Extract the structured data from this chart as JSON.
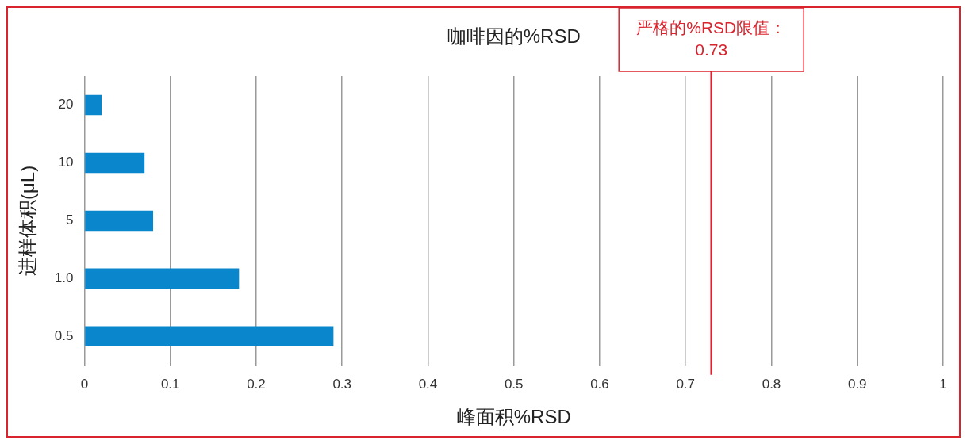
{
  "chart_data": {
    "type": "bar",
    "orientation": "horizontal",
    "title": "咖啡因的%RSD",
    "xlabel": "峰面积%RSD",
    "ylabel": "进样体积(μL)",
    "categories": [
      "20",
      "10",
      "5",
      "1.0",
      "0.5"
    ],
    "values": [
      0.02,
      0.07,
      0.08,
      0.18,
      0.29
    ],
    "color": "#0a87cc",
    "xlim": [
      0,
      1
    ],
    "xticks": [
      0,
      0.1,
      0.2,
      0.3,
      0.4,
      0.5,
      0.6,
      0.7,
      0.8,
      0.9,
      1
    ],
    "grid": "x",
    "ref_lines": [
      {
        "axis": "x",
        "value": 0.73,
        "label": "严格的%RSD限值：\n0.73",
        "color": "#d9232d"
      }
    ]
  }
}
